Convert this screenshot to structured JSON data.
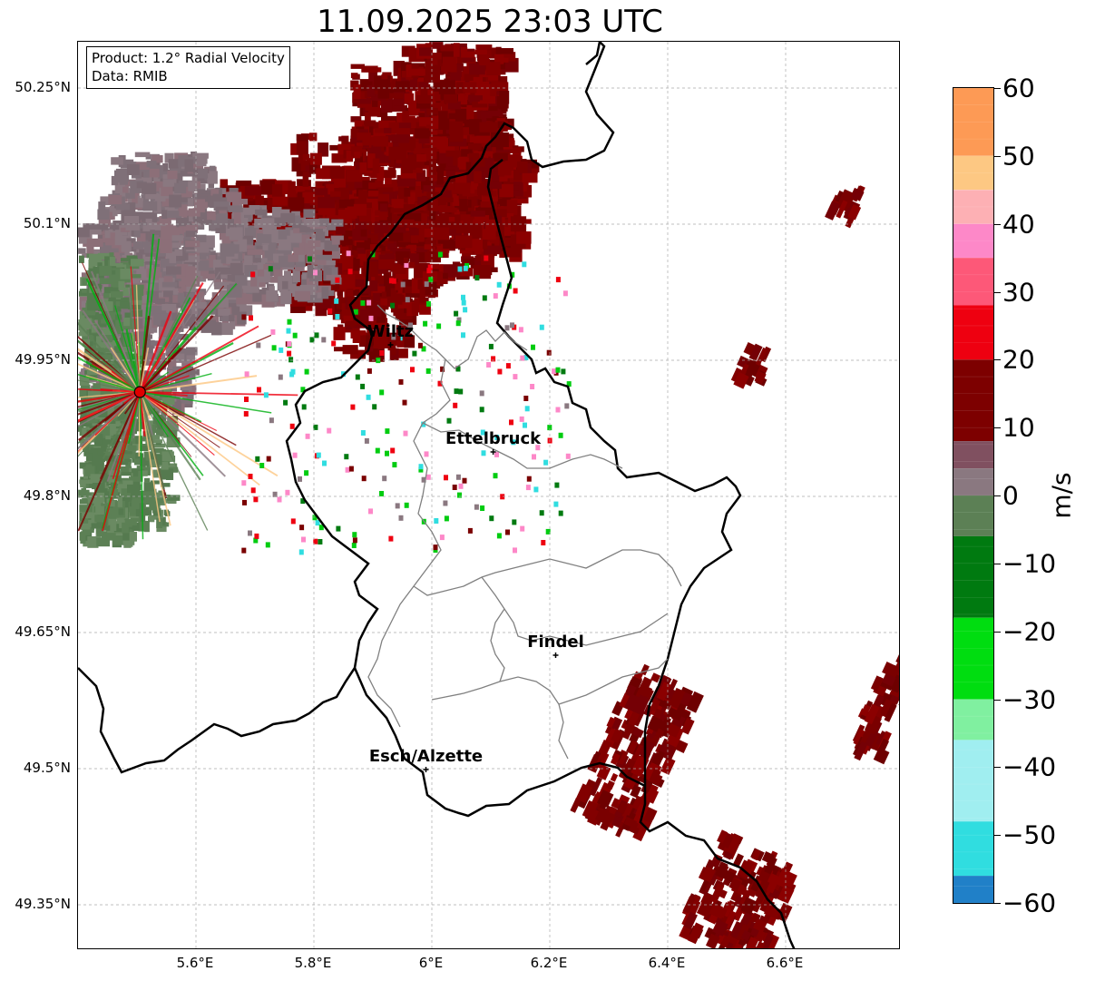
{
  "title": "11.09.2025 23:03 UTC",
  "info_box": {
    "product": "Product: 1.2° Radial Velocity",
    "data": "Data: RMIB"
  },
  "map": {
    "lon_range": [
      5.4,
      6.8
    ],
    "lat_range": [
      49.283,
      50.3
    ],
    "lat_ticks": [
      {
        "value": 50.25,
        "label": "50.25°N"
      },
      {
        "value": 50.1,
        "label": "50.1°N"
      },
      {
        "value": 49.95,
        "label": "49.95°N"
      },
      {
        "value": 49.8,
        "label": "49.8°N"
      },
      {
        "value": 49.65,
        "label": "49.65°N"
      },
      {
        "value": 49.5,
        "label": "49.5°N"
      },
      {
        "value": 49.35,
        "label": "49.35°N"
      }
    ],
    "lon_ticks": [
      {
        "value": 5.6,
        "label": "5.6°E"
      },
      {
        "value": 5.8,
        "label": "5.8°E"
      },
      {
        "value": 6.0,
        "label": "6°E"
      },
      {
        "value": 6.2,
        "label": "6.2°E"
      },
      {
        "value": 6.4,
        "label": "6.4°E"
      },
      {
        "value": 6.6,
        "label": "6.6°E"
      }
    ],
    "gridlines": true,
    "radar_site": {
      "lon": 5.505,
      "lat": 49.915,
      "color": "#e00000"
    },
    "cities": [
      {
        "name": "Wiltz",
        "lon": 5.93,
        "lat": 49.967
      },
      {
        "name": "Ettelbruck",
        "lon": 6.104,
        "lat": 49.849
      },
      {
        "name": "Findel",
        "lon": 6.21,
        "lat": 49.625
      },
      {
        "name": "Esch/Alzette",
        "lon": 5.99,
        "lat": 49.499
      }
    ]
  },
  "colorbar": {
    "unit": "m/s",
    "min": -60,
    "max": 60,
    "ticks": [
      {
        "value": 60,
        "label": "60"
      },
      {
        "value": 50,
        "label": "50"
      },
      {
        "value": 40,
        "label": "40"
      },
      {
        "value": 30,
        "label": "30"
      },
      {
        "value": 20,
        "label": "20"
      },
      {
        "value": 10,
        "label": "10"
      },
      {
        "value": 0,
        "label": "0"
      },
      {
        "value": -10,
        "label": "−10"
      },
      {
        "value": -20,
        "label": "−20"
      },
      {
        "value": -30,
        "label": "−30"
      },
      {
        "value": -40,
        "label": "−40"
      },
      {
        "value": -50,
        "label": "−50"
      },
      {
        "value": -60,
        "label": "−60"
      }
    ],
    "stops": [
      {
        "from": 50,
        "to": 60,
        "color": "#fd9a55"
      },
      {
        "from": 45,
        "to": 50,
        "color": "#fdc883"
      },
      {
        "from": 40,
        "to": 45,
        "color": "#fdb0b4"
      },
      {
        "from": 35,
        "to": 40,
        "color": "#fd88c8"
      },
      {
        "from": 28,
        "to": 35,
        "color": "#fd5878"
      },
      {
        "from": 20,
        "to": 28,
        "color": "#ee0010"
      },
      {
        "from": 8,
        "to": 20,
        "color": "#7d0000"
      },
      {
        "from": 4,
        "to": 8,
        "color": "#805060"
      },
      {
        "from": 0,
        "to": 4,
        "color": "#8a7880"
      },
      {
        "from": -6,
        "to": 0,
        "color": "#5c8055"
      },
      {
        "from": -18,
        "to": -6,
        "color": "#007a10"
      },
      {
        "from": -30,
        "to": -18,
        "color": "#00dd10"
      },
      {
        "from": -36,
        "to": -30,
        "color": "#80f0a0"
      },
      {
        "from": -48,
        "to": -36,
        "color": "#a0eef0"
      },
      {
        "from": -56,
        "to": -48,
        "color": "#30dde0"
      },
      {
        "from": -60,
        "to": -56,
        "color": "#2080c8"
      }
    ]
  }
}
